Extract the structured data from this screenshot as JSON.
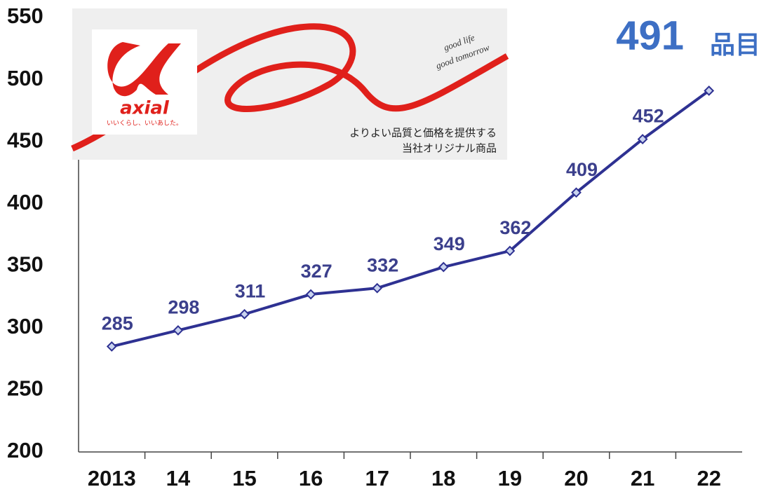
{
  "chart_data": {
    "type": "line",
    "categories": [
      "2013",
      "14",
      "15",
      "16",
      "17",
      "18",
      "19",
      "20",
      "21",
      "22"
    ],
    "series": [
      {
        "color": "#2e3192",
        "values": [
          285,
          298,
          311,
          327,
          332,
          349,
          362,
          409,
          452,
          491
        ]
      }
    ],
    "label_unit": "品目",
    "ylim": [
      200,
      550
    ],
    "yticks": [
      200,
      250,
      300,
      350,
      400,
      450,
      500,
      550
    ],
    "grid": false
  },
  "banner": {
    "brand": "axial",
    "slogan": "いいくらし、いいあした。",
    "tagline_1": "good life",
    "tagline_2": "good tomorrow",
    "caption_1": "よりよい品質と価格を提供する",
    "caption_2": "当社オリジナル商品"
  }
}
